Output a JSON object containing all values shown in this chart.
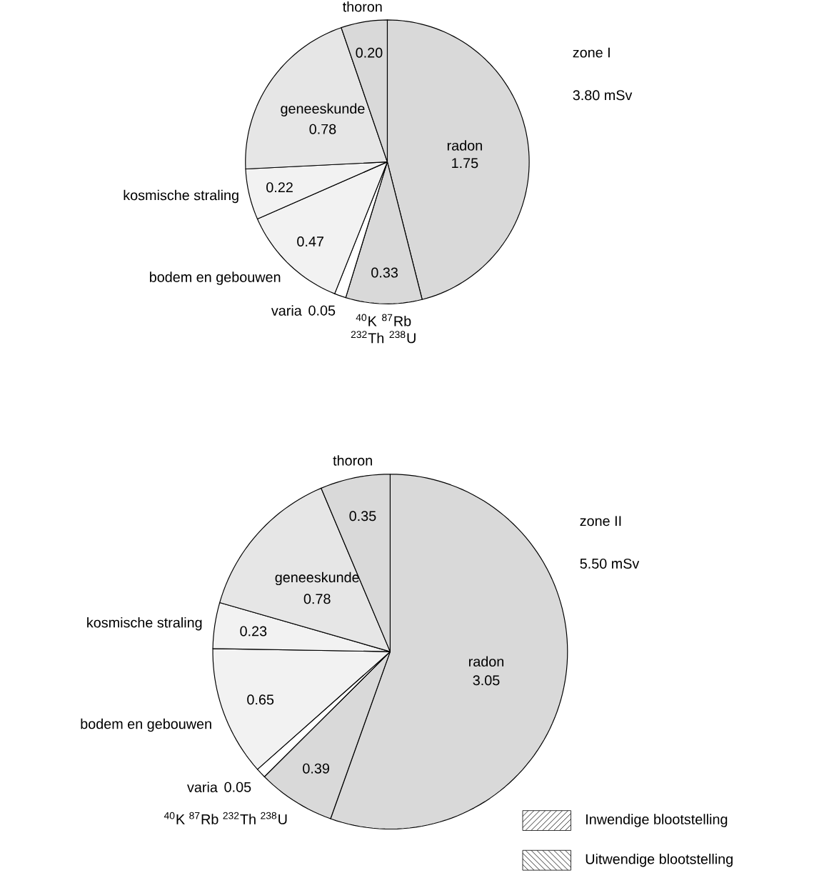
{
  "chart_data": [
    {
      "type": "pie",
      "title": "zone I",
      "subtitle": "3.80 mSv",
      "categories": [
        "radon",
        "$^{40}$K $^{87}$Rb $^{232}$Th $^{238}$U",
        "varia",
        "bodem en gebouwen",
        "kosmische straling",
        "geneeskunde",
        "thoron"
      ],
      "values": [
        1.75,
        0.33,
        0.05,
        0.47,
        0.22,
        0.78,
        0.2
      ],
      "value_labels": [
        "1.75",
        "0.33",
        "0.05",
        "0.47",
        "0.22",
        "0.78",
        "0.20"
      ],
      "colors": [
        "#d9d9d9",
        "#d9d9d9",
        "#ffffff",
        "#f2f2f2",
        "#f2f2f2",
        "#e6e6e6",
        "#d9d9d9"
      ]
    },
    {
      "type": "pie",
      "title": "zone II",
      "subtitle": "5.50 mSv",
      "categories": [
        "radon",
        "$^{40}$K $^{87}$Rb $^{232}$Th $^{238}$U",
        "varia",
        "bodem en gebouwen",
        "kosmische straling",
        "geneeskunde",
        "thoron"
      ],
      "values": [
        3.05,
        0.39,
        0.05,
        0.65,
        0.23,
        0.78,
        0.35
      ],
      "value_labels": [
        "3.05",
        "0.39",
        "0.05",
        "0.65",
        "0.23",
        "0.78",
        "0.35"
      ],
      "colors": [
        "#d9d9d9",
        "#d9d9d9",
        "#ffffff",
        "#f2f2f2",
        "#f2f2f2",
        "#e6e6e6",
        "#d9d9d9"
      ],
      "annotations": [
        "Inwendige blootstelling",
        "Uitwendige blootstelling"
      ]
    }
  ]
}
